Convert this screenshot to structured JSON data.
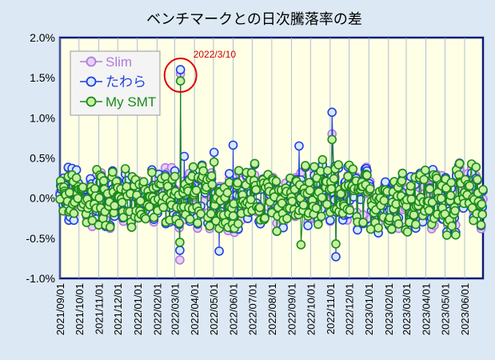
{
  "chart_data": {
    "type": "line",
    "title": "ベンチマークとの日次騰落率の差",
    "ylim": [
      -1.0,
      2.0
    ],
    "y_ticks": [
      "2.0%",
      "1.5%",
      "1.0%",
      "0.5%",
      "0.0%",
      "-0.5%",
      "-1.0%"
    ],
    "x_ticks": [
      "2021/09/01",
      "2021/10/01",
      "2021/11/01",
      "2021/12/01",
      "2022/01/01",
      "2022/02/01",
      "2022/03/01",
      "2022/04/01",
      "2022/05/01",
      "2022/06/01",
      "2022/07/01",
      "2022/08/01",
      "2022/09/01",
      "2022/10/01",
      "2022/11/01",
      "2022/12/01",
      "2023/01/01",
      "2023/02/01",
      "2023/03/01",
      "2023/04/01",
      "2023/05/01",
      "2023/06/01"
    ],
    "x_range": [
      "2021-09-01",
      "2023-06-30"
    ],
    "grid": "vertical",
    "legend_position": "top-left",
    "annotation": {
      "text": "2022/3/10",
      "date": "2022-03-10",
      "color": "#cc0000"
    },
    "series": [
      {
        "name": "Slim",
        "color": "#b07cdc",
        "fill": "#e8d0f8",
        "highlights": [
          {
            "date": "2022-03-10",
            "y": 1.55
          },
          {
            "date": "2022-03-09",
            "y": -0.77
          },
          {
            "date": "2022-11-04",
            "y": 0.8
          },
          {
            "date": "2022-05-02",
            "y": 0.45
          },
          {
            "date": "2022-02-24",
            "y": 0.38
          }
        ]
      },
      {
        "name": "たわら",
        "color": "#2040e0",
        "fill": "#d8e8ff",
        "highlights": [
          {
            "date": "2022-03-10",
            "y": 1.6
          },
          {
            "date": "2022-03-09",
            "y": -0.65
          },
          {
            "date": "2022-11-04",
            "y": 1.07
          },
          {
            "date": "2022-11-10",
            "y": -0.73
          },
          {
            "date": "2022-05-02",
            "y": 0.57
          },
          {
            "date": "2022-05-10",
            "y": -0.66
          },
          {
            "date": "2022-06-01",
            "y": 0.66
          },
          {
            "date": "2022-09-13",
            "y": 0.65
          },
          {
            "date": "2022-03-16",
            "y": 0.52
          }
        ]
      },
      {
        "name": "My SMT",
        "color": "#1a8a1a",
        "fill": "#c8f0a0",
        "highlights": [
          {
            "date": "2022-03-10",
            "y": 1.46
          },
          {
            "date": "2022-03-09",
            "y": -0.55
          },
          {
            "date": "2022-11-04",
            "y": 0.73
          },
          {
            "date": "2022-11-10",
            "y": -0.57
          },
          {
            "date": "2022-09-16",
            "y": -0.58
          },
          {
            "date": "2022-05-02",
            "y": 0.45
          },
          {
            "date": "2022-12-01",
            "y": 0.41
          }
        ]
      }
    ]
  }
}
